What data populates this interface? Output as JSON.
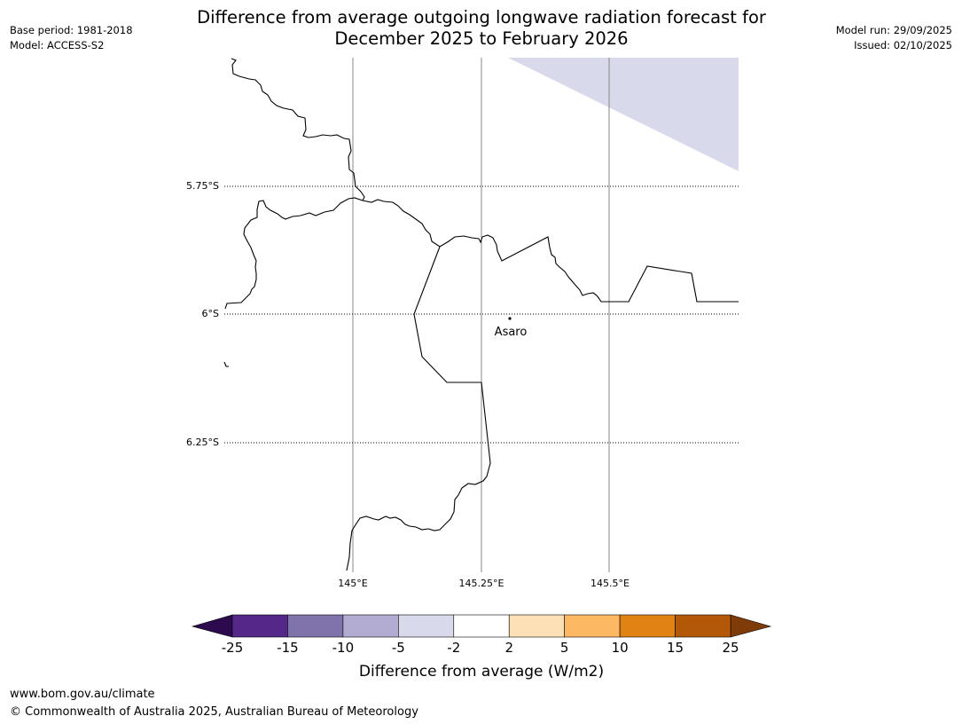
{
  "header": {
    "title_line1": "Difference from average outgoing longwave radiation forecast for",
    "title_line2": "December 2025 to February 2026",
    "base_period": "Base period: 1981-2018",
    "model": "Model: ACCESS-S2",
    "model_run": "Model run: 29/09/2025",
    "issued": "Issued: 02/10/2025"
  },
  "map": {
    "lat_labels": [
      "5.75°S",
      "6°S",
      "6.25°S"
    ],
    "lon_labels": [
      "145°E",
      "145.25°E",
      "145.5°E"
    ],
    "place": {
      "name": "Asaro"
    },
    "shaded_region_color": "#d8d9ea",
    "gridline_color": "#888888"
  },
  "colorbar": {
    "title": "Difference from average (W/m2)",
    "tick_labels": [
      "-25",
      "-15",
      "-10",
      "-5",
      "-2",
      "2",
      "5",
      "10",
      "15",
      "25"
    ],
    "underflow_color": "#2d0a4e",
    "overflow_color": "#7f3b08",
    "colors": [
      "#542788",
      "#8073ac",
      "#b2abd2",
      "#d8daeb",
      "#ffffff",
      "#fee0b6",
      "#fdb863",
      "#e08214",
      "#b35806"
    ]
  },
  "footer": {
    "url": "www.bom.gov.au/climate",
    "copyright": "© Commonwealth of Australia 2025, Australian Bureau of Meteorology"
  }
}
